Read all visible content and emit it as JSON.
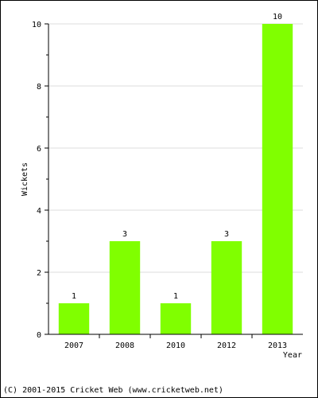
{
  "chart_data": {
    "type": "bar",
    "categories": [
      "2007",
      "2008",
      "2010",
      "2012",
      "2013"
    ],
    "values": [
      1,
      3,
      1,
      3,
      10
    ],
    "data_labels": [
      "1",
      "3",
      "1",
      "3",
      "10"
    ],
    "xlabel": "Year",
    "ylabel": "Wickets",
    "ylim": [
      0,
      10
    ],
    "yticks": [
      0,
      2,
      4,
      6,
      8,
      10
    ],
    "grid": true,
    "bar_color": "#80ff00"
  },
  "footer": {
    "copyright": "(C) 2001-2015 Cricket Web (www.cricketweb.net)"
  }
}
